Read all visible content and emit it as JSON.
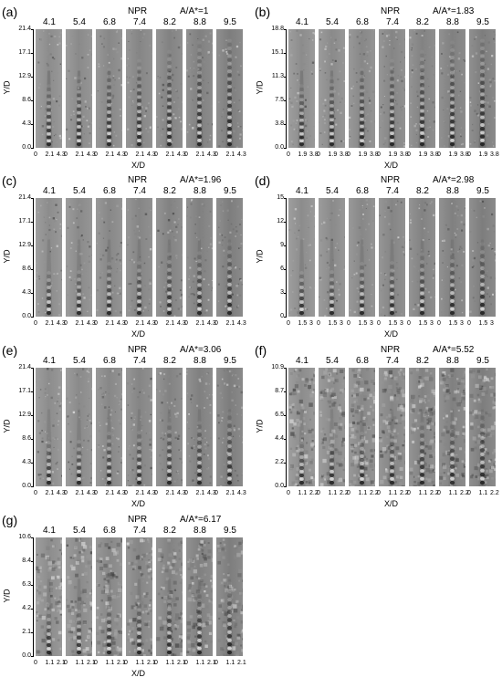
{
  "npr_title": "NPR",
  "npr_values": [
    "4.1",
    "5.4",
    "6.8",
    "7.4",
    "8.2",
    "8.8",
    "9.5"
  ],
  "x_axis_label": "X/D",
  "y_axis_label": "Y/D",
  "panels": [
    {
      "label": "(a)",
      "ratio": "A/A*=1",
      "yticks": [
        "21.4",
        "17.1",
        "12.9",
        "8.6",
        "4.3",
        "0.0"
      ],
      "xticks": [
        "0",
        "2.1",
        "4.3"
      ],
      "texture": "coarse",
      "noise": 0.35
    },
    {
      "label": "(b)",
      "ratio": "A/A*=1.83",
      "yticks": [
        "18.8",
        "15.1",
        "11.3",
        "7.5",
        "3.8",
        "0.0"
      ],
      "xticks": [
        "0",
        "1.9",
        "3.8"
      ],
      "texture": "coarse",
      "noise": 0.45
    },
    {
      "label": "(c)",
      "ratio": "A/A*=1.96",
      "yticks": [
        "21.4",
        "17.1",
        "12.9",
        "8.6",
        "4.3",
        "0.0"
      ],
      "xticks": [
        "0",
        "2.1",
        "4.3"
      ],
      "texture": "fine",
      "noise": 0.4
    },
    {
      "label": "(d)",
      "ratio": "A/A*=2.98",
      "yticks": [
        "15",
        "12",
        "9",
        "6",
        "3",
        "0"
      ],
      "xticks": [
        "0",
        "1.5",
        "3"
      ],
      "texture": "fine",
      "noise": 0.35
    },
    {
      "label": "(e)",
      "ratio": "A/A*=3.06",
      "yticks": [
        "21.4",
        "17.1",
        "12.9",
        "8.6",
        "4.3",
        "0.0"
      ],
      "xticks": [
        "0",
        "2.1",
        "4.3"
      ],
      "texture": "fine",
      "noise": 0.5
    },
    {
      "label": "(f)",
      "ratio": "A/A*=5.52",
      "yticks": [
        "10.9",
        "8.7",
        "6.5",
        "4.4",
        "2.2",
        "0.0"
      ],
      "xticks": [
        "0",
        "1.1",
        "2.2"
      ],
      "texture": "grainy",
      "noise": 0.9
    },
    {
      "label": "(g)",
      "ratio": "A/A*=6.17",
      "yticks": [
        "10.6",
        "8.4",
        "6.3",
        "4.2",
        "2.1",
        "0.0"
      ],
      "xticks": [
        "0",
        "1.1",
        "2.1"
      ],
      "texture": "grainy",
      "noise": 0.8
    }
  ]
}
